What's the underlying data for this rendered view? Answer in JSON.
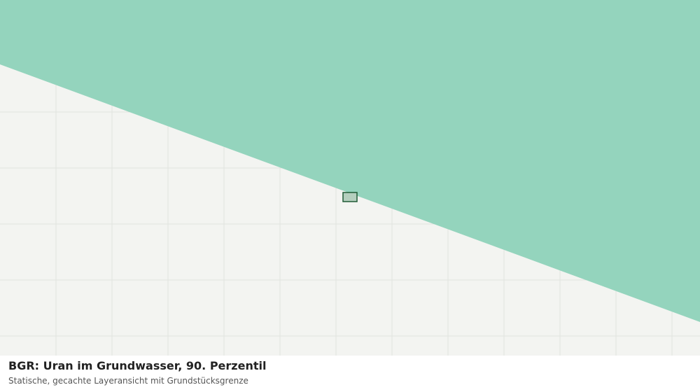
{
  "caption": {
    "title": "BGR: Uran im Grundwasser, 90. Perzentil",
    "subtitle": "Statische, gecachte Layeransicht mit Grundstücksgrenze"
  }
}
